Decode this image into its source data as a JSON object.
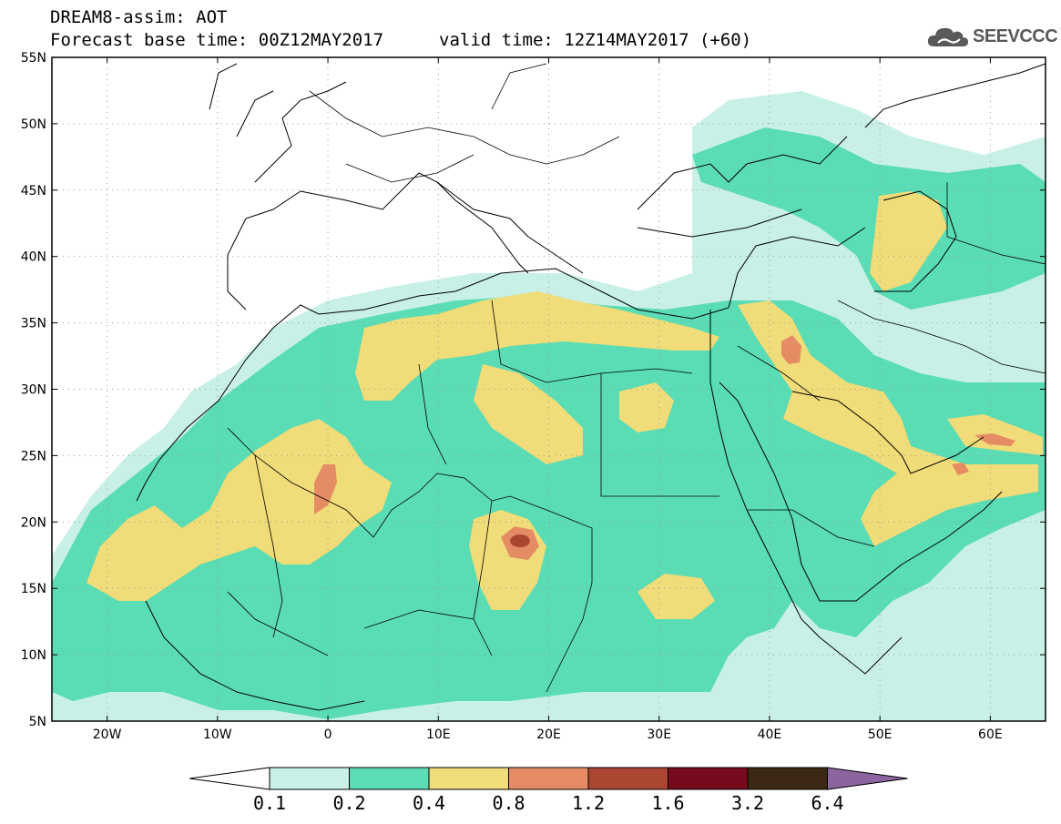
{
  "header": {
    "title": "DREAM8-assim: AOT",
    "base_time": "Forecast base time: 00Z12MAY2017",
    "valid_time": "valid time: 12Z14MAY2017 (+60)",
    "logo_text": "SEEVCCC",
    "logo_icon": "cloud-icon"
  },
  "map": {
    "projection": "lat-lon",
    "lon_range": [
      -25,
      65
    ],
    "lat_range": [
      5,
      55
    ],
    "lon_ticks": [
      {
        "value": -20,
        "label": "20W"
      },
      {
        "value": -10,
        "label": "10W"
      },
      {
        "value": 0,
        "label": "0"
      },
      {
        "value": 10,
        "label": "10E"
      },
      {
        "value": 20,
        "label": "20E"
      },
      {
        "value": 30,
        "label": "30E"
      },
      {
        "value": 40,
        "label": "40E"
      },
      {
        "value": 50,
        "label": "50E"
      },
      {
        "value": 60,
        "label": "60E"
      }
    ],
    "lat_ticks": [
      {
        "value": 55,
        "label": "55N"
      },
      {
        "value": 50,
        "label": "50N"
      },
      {
        "value": 45,
        "label": "45N"
      },
      {
        "value": 40,
        "label": "40N"
      },
      {
        "value": 35,
        "label": "35N"
      },
      {
        "value": 30,
        "label": "30N"
      },
      {
        "value": 25,
        "label": "25N"
      },
      {
        "value": 20,
        "label": "20N"
      },
      {
        "value": 15,
        "label": "15N"
      },
      {
        "value": 10,
        "label": "10N"
      },
      {
        "value": 5,
        "label": "5N"
      }
    ],
    "grid": "dotted"
  },
  "colorbar": {
    "levels": [
      "0.1",
      "0.2",
      "0.4",
      "0.8",
      "1.2",
      "1.6",
      "3.2",
      "6.4"
    ],
    "colors": [
      "#ffffff",
      "#c8f0e6",
      "#5adcb4",
      "#f0dc78",
      "#e68c64",
      "#aa4632",
      "#780a1e",
      "#3c2814",
      "#8c64a0"
    ]
  },
  "fill_colors": {
    "c1": "#c8f0e6",
    "c2": "#5adcb4",
    "c3": "#f0dc78",
    "c4": "#e68c64",
    "c5": "#aa4632"
  }
}
